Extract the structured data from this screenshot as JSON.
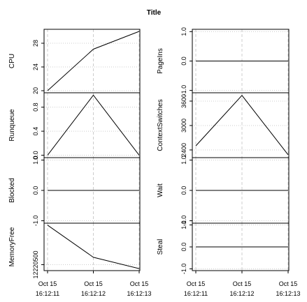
{
  "title": "Title",
  "x_labels": [
    {
      "date": "Oct 15",
      "time": "16:12:11"
    },
    {
      "date": "Oct 15",
      "time": "16:12:12"
    },
    {
      "date": "Oct 15",
      "time": "16:12:13"
    }
  ],
  "chart_data": [
    {
      "type": "line",
      "ylabel": "CPU",
      "values": [
        20,
        27,
        30
      ],
      "ylim": [
        19.65,
        30.35
      ],
      "yticks": [
        20,
        24,
        28
      ],
      "color": "#000000",
      "grid": true
    },
    {
      "type": "line",
      "ylabel": "Runqueue",
      "values": [
        0,
        1,
        0
      ],
      "ylim": [
        -0.04,
        1.04
      ],
      "yticks": [
        {
          "value": 0,
          "label": "0.0"
        },
        {
          "value": 0.4,
          "label": "0.4"
        },
        {
          "value": 0.8,
          "label": "0.8"
        }
      ],
      "color": "#000000",
      "grid": true
    },
    {
      "type": "line",
      "ylabel": "Blocked",
      "values": [
        0,
        0,
        0
      ],
      "ylim": [
        -1.08,
        1.08
      ],
      "yticks": [
        {
          "value": -1,
          "label": "-1.0"
        },
        {
          "value": 0,
          "label": "0.0"
        },
        {
          "value": 1,
          "label": "1.0"
        }
      ],
      "color": "#000000",
      "grid": true
    },
    {
      "type": "line",
      "ylabel": "MemoryFree",
      "values": [
        12220900,
        12220575,
        12220460
      ],
      "ylim": [
        12220440,
        12220920
      ],
      "yticks": [
        12220500
      ],
      "color": "#000000",
      "grid": true
    },
    {
      "type": "line",
      "ylabel": "PageIns",
      "values": [
        0,
        0,
        0
      ],
      "ylim": [
        -1.08,
        1.08
      ],
      "yticks": [
        {
          "value": -1,
          "label": "-1.0"
        },
        {
          "value": 0,
          "label": "0.0"
        },
        {
          "value": 1,
          "label": "1.0"
        }
      ],
      "color": "#000000",
      "grid": true
    },
    {
      "type": "line",
      "ylabel": "ContextSwitches",
      "values": [
        2500,
        3740,
        2280
      ],
      "ylim": [
        2211,
        3805
      ],
      "yticks": [
        2400,
        3000,
        3600
      ],
      "color": "#000000",
      "grid": true
    },
    {
      "type": "line",
      "ylabel": "Wait",
      "values": [
        0,
        0,
        0
      ],
      "ylim": [
        -1.08,
        1.08
      ],
      "yticks": [
        {
          "value": -1,
          "label": "-1.0"
        },
        {
          "value": 0,
          "label": "0.0"
        },
        {
          "value": 1,
          "label": "1.0"
        }
      ],
      "color": "#000000",
      "grid": true
    },
    {
      "type": "line",
      "ylabel": "Steal",
      "values": [
        0,
        0,
        0
      ],
      "ylim": [
        -1.08,
        1.08
      ],
      "yticks": [
        {
          "value": -1,
          "label": "-1.0"
        },
        {
          "value": 0,
          "label": "0.0"
        },
        {
          "value": 1,
          "label": "1.0"
        }
      ],
      "color": "#000000",
      "grid": true
    }
  ]
}
